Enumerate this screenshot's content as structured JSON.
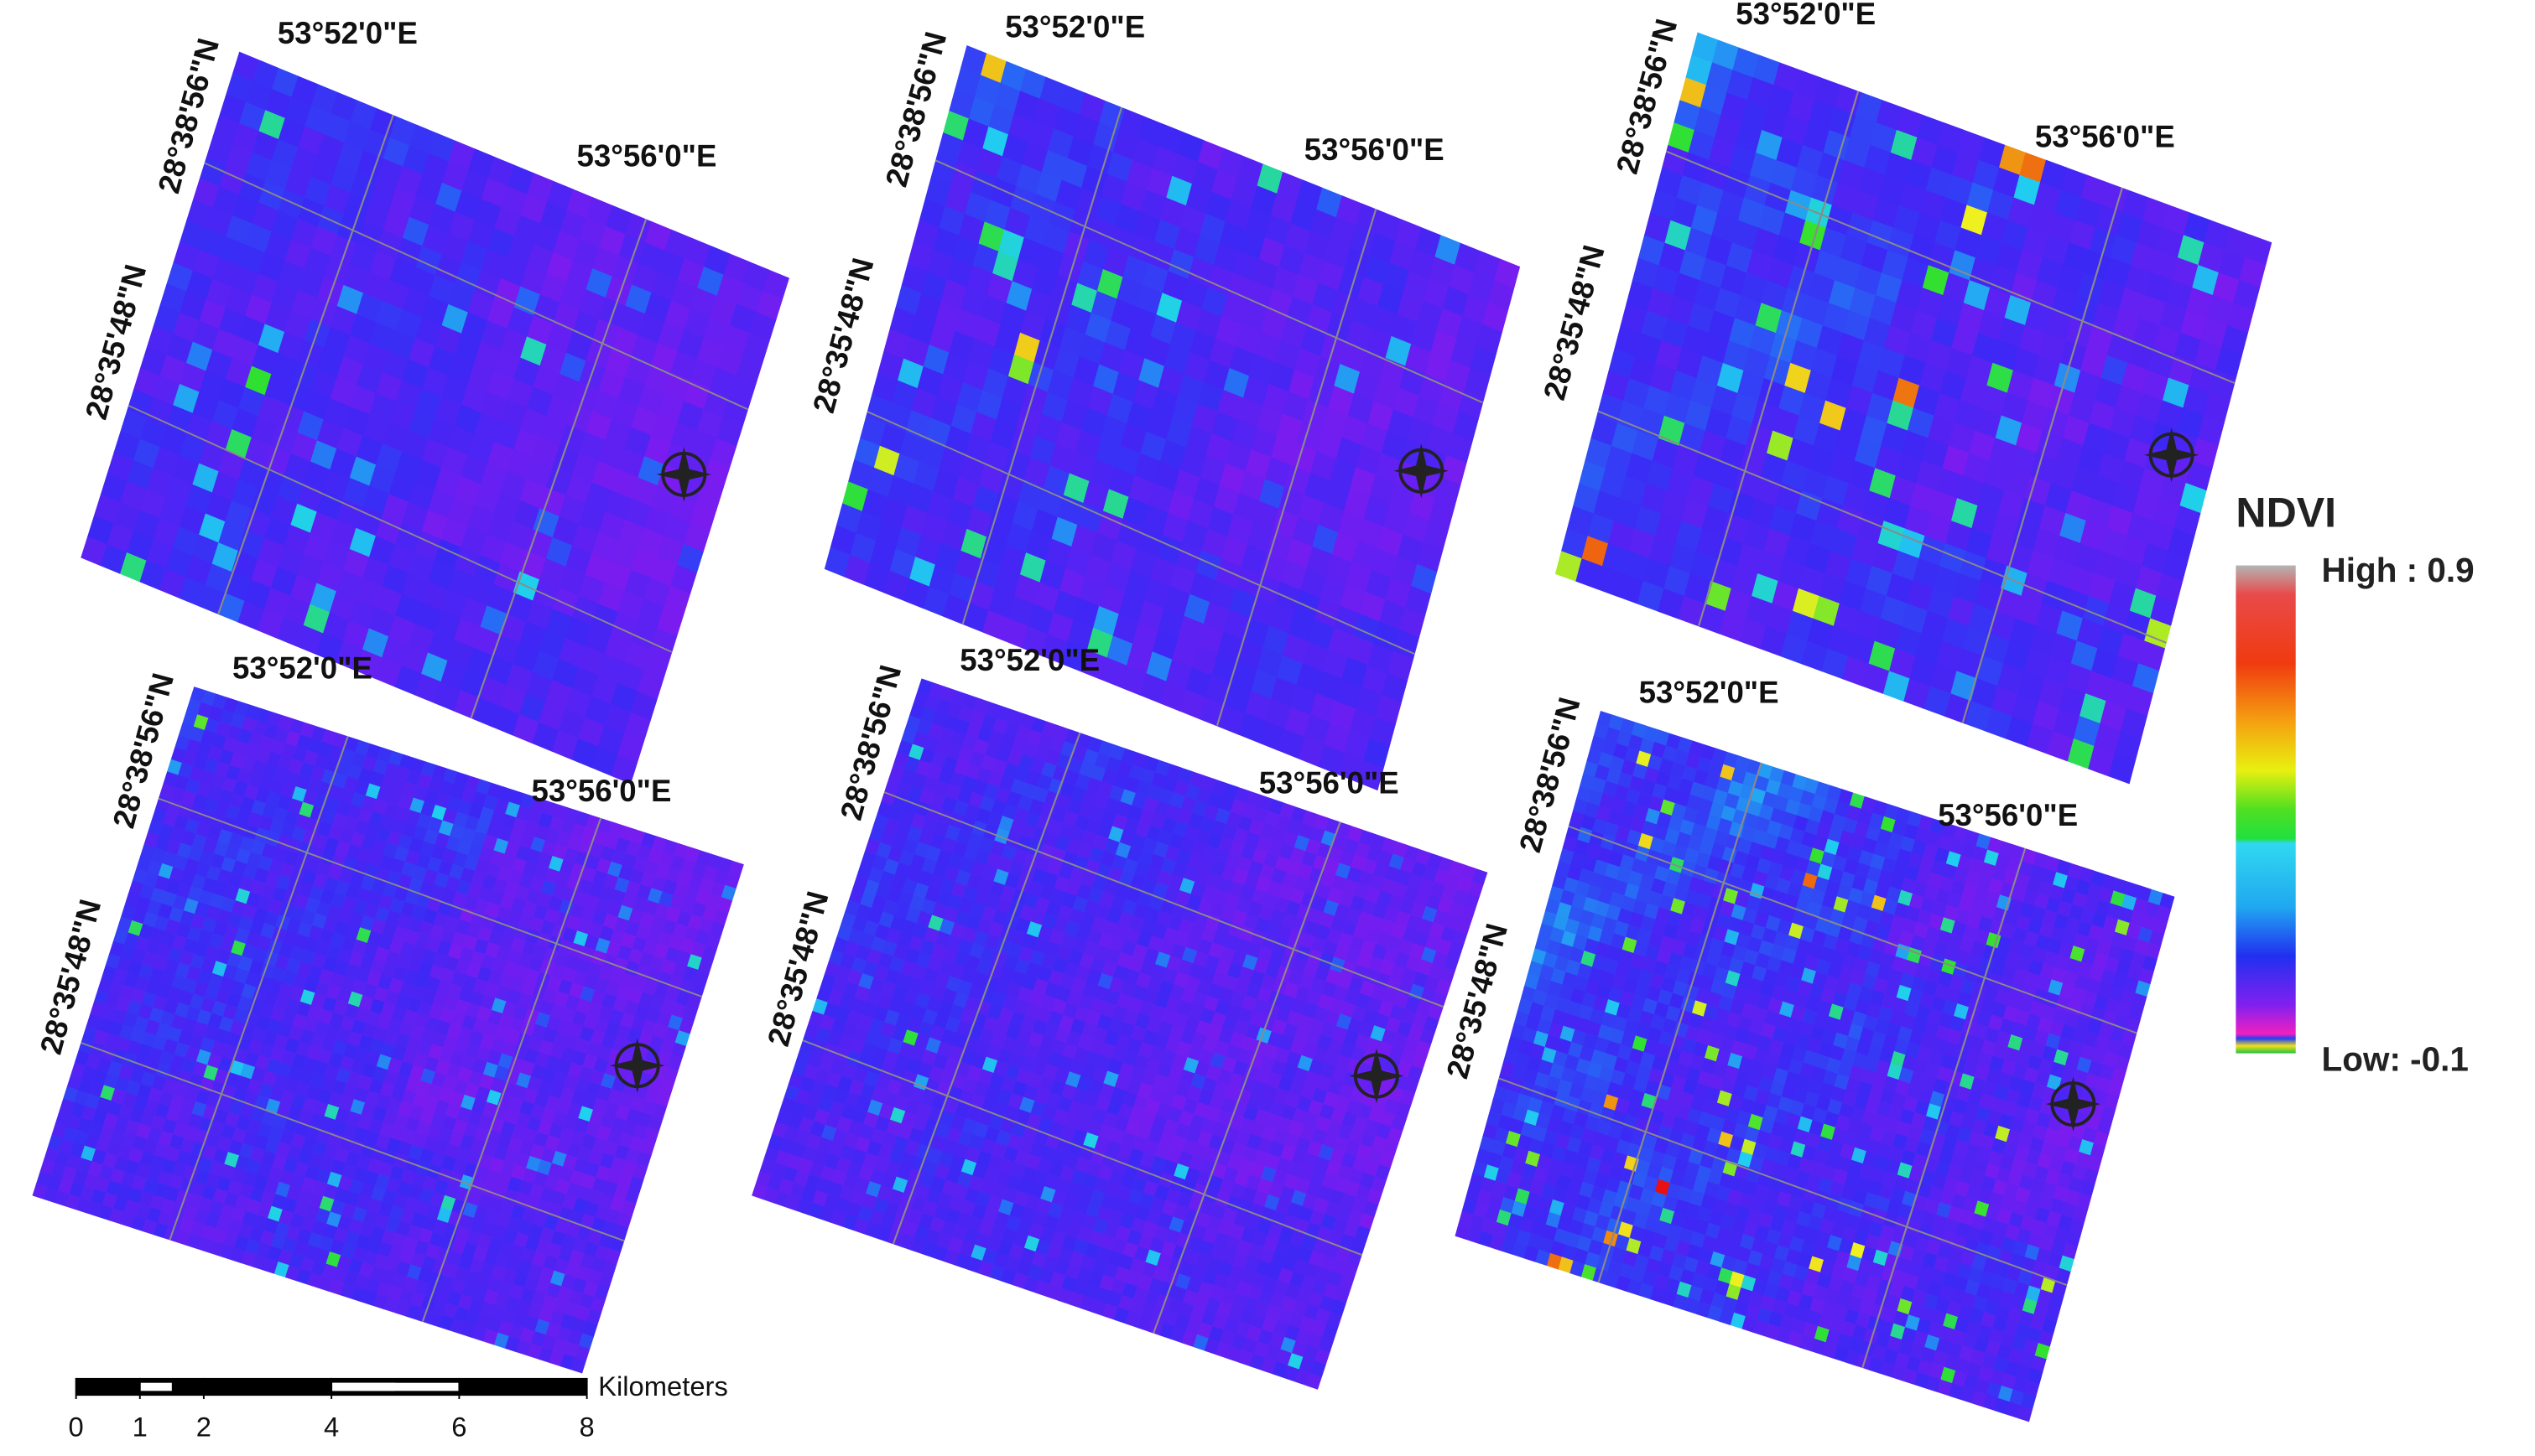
{
  "panels": [
    {
      "labels": {
        "lon1": "53°52'0\"E",
        "lon2": "53°56'0\"E",
        "lat1": "28°38'56\"N",
        "lat2": "28°35'48\"N"
      }
    },
    {
      "labels": {
        "lon1": "53°52'0\"E",
        "lon2": "53°56'0\"E",
        "lat1": "28°38'56\"N",
        "lat2": "28°35'48\"N"
      }
    },
    {
      "labels": {
        "lon1": "53°52'0\"E",
        "lon2": "53°56'0\"E",
        "lat1": "28°38'56\"N",
        "lat2": "28°35'48\"N"
      }
    },
    {
      "labels": {
        "lon1": "53°52'0\"E",
        "lon2": "53°56'0\"E",
        "lat1": "28°38'56\"N",
        "lat2": "28°35'48\"N"
      }
    },
    {
      "labels": {
        "lon1": "53°52'0\"E",
        "lon2": "53°56'0\"E",
        "lat1": "28°38'56\"N",
        "lat2": "28°35'48\"N"
      }
    },
    {
      "labels": {
        "lon1": "53°52'0\"E",
        "lon2": "53°56'0\"E",
        "lat1": "28°38'56\"N",
        "lat2": "28°35'48\"N"
      }
    }
  ],
  "legend": {
    "title": "NDVI",
    "high": "High : 0.9",
    "low": "Low: -0.1"
  },
  "scale_bar": {
    "unit": "Kilometers",
    "ticks": [
      0,
      1,
      2,
      4,
      6,
      8
    ]
  }
}
